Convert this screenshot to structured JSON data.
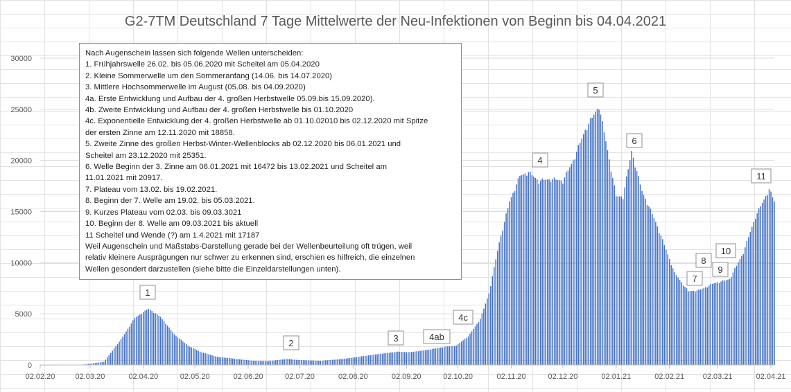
{
  "chart_data": {
    "type": "bar",
    "title": "G2-7TM Deutschland 7 Tage Mittelwerte der Neu-Infektionen von Beginn bis 04.04.2021",
    "xlabel": "",
    "ylabel": "",
    "ylim": [
      0,
      30000
    ],
    "yticks": [
      "0",
      "5000",
      "10000",
      "15000",
      "20000",
      "25000",
      "30000"
    ],
    "xticks": [
      "02.02.20",
      "02.03.20",
      "02.04.20",
      "02.05.20",
      "02.06.20",
      "02.07.20",
      "02.08.20",
      "02.09.20",
      "02.10.20",
      "02.11.20",
      "02.12.20",
      "02.01.21",
      "02.02.21",
      "02.03.21",
      "02.04.21"
    ],
    "x_start": "02.02.20",
    "x_end": "04.04.21",
    "grid": true,
    "bar_color": "#4472c4",
    "series_anchors": [
      [
        "02.02.20",
        0
      ],
      [
        "25.02.20",
        10
      ],
      [
        "10.03.20",
        300
      ],
      [
        "20.03.20",
        2500
      ],
      [
        "28.03.20",
        4600
      ],
      [
        "05.04.20",
        5500
      ],
      [
        "12.04.20",
        4700
      ],
      [
        "20.04.20",
        3000
      ],
      [
        "28.04.20",
        1900
      ],
      [
        "05.05.20",
        1300
      ],
      [
        "15.05.20",
        800
      ],
      [
        "26.05.20",
        600
      ],
      [
        "05.06.20",
        400
      ],
      [
        "14.06.20",
        380
      ],
      [
        "25.06.20",
        600
      ],
      [
        "01.07.20",
        480
      ],
      [
        "14.07.20",
        400
      ],
      [
        "24.07.20",
        550
      ],
      [
        "01.08.20",
        700
      ],
      [
        "18.08.20",
        1100
      ],
      [
        "28.08.20",
        1300
      ],
      [
        "04.09.20",
        1250
      ],
      [
        "15.09.20",
        1500
      ],
      [
        "25.09.20",
        1800
      ],
      [
        "01.10.20",
        1900
      ],
      [
        "08.10.20",
        2800
      ],
      [
        "15.10.20",
        4500
      ],
      [
        "20.10.20",
        7000
      ],
      [
        "26.10.20",
        12000
      ],
      [
        "01.11.20",
        16000
      ],
      [
        "07.11.20",
        18500
      ],
      [
        "12.11.20",
        18858
      ],
      [
        "18.11.20",
        18000
      ],
      [
        "25.11.20",
        18200
      ],
      [
        "02.12.20",
        18000
      ],
      [
        "08.12.20",
        20000
      ],
      [
        "15.12.20",
        23000
      ],
      [
        "23.12.20",
        25351
      ],
      [
        "28.12.20",
        21000
      ],
      [
        "02.01.21",
        16500
      ],
      [
        "06.01.21",
        16472
      ],
      [
        "11.01.21",
        20917
      ],
      [
        "17.01.21",
        17000
      ],
      [
        "25.01.21",
        14000
      ],
      [
        "05.02.21",
        9000
      ],
      [
        "13.02.21",
        7200
      ],
      [
        "19.02.21",
        7300
      ],
      [
        "28.02.21",
        8000
      ],
      [
        "05.03.21",
        8200
      ],
      [
        "09.03.21",
        8400
      ],
      [
        "17.03.21",
        11000
      ],
      [
        "24.03.21",
        14500
      ],
      [
        "01.04.21",
        17187
      ],
      [
        "04.04.21",
        16000
      ]
    ],
    "wave_labels": [
      "1",
      "2",
      "3",
      "4ab",
      "4c",
      "4",
      "5",
      "6",
      "7",
      "8",
      "9",
      "10",
      "11"
    ],
    "annotation_lines": [
      "Nach Augenschein lassen sich folgende Wellen unterscheiden:",
      "1. Frühjahrswelle  26.02. bis 05.06.2020 mit Scheitel am 05.04.2020",
      "2. Kleine Sommerwelle um den Sommeranfang (14.06. bis 14.07.2020)",
      "3. Mittlere Hochsommerwelle im August (05.08. bis 04.09.2020)",
      "4a. Erste Entwicklung und Aufbau der 4. großen Herbstwelle 05.09.bis 15.09.2020).",
      "4b. Zweite Entwicklung und Aufbau der 4. großen Herbstwelle bis 01.10.2020",
      "4c. Exponentielle Entwicklung der 4. großen Herbstwelle ab 01.10.02010 bis 02.12.2020 mit Spitze",
      "der ersten Zinne am 12.11.2020 mit 18858.",
      "5. Zweite Zinne des großen Herbst-Winter-Wellenblocks ab 02.12.2020 bis 06.01.2021 und",
      "Scheitel am 23.12.2020 mit 25351.",
      "6. Welle Beginn der 3. Zinne am 06.01.2021 mit 16472 bis 13.02.2021 und Scheitel am",
      "11.01.2021 mit 20917.",
      "7. Plateau vom 13.02. bis 19.02.2021.",
      "8. Beginn der 7. Welle am 19.02. bis 05.03.2021.",
      "9. Kurzes Plateau vom 02.03. bis 09.03.3021",
      "10. Beginn der 8. Welle am 09.03.2021 bis aktuell",
      "11  Scheitel  und Wende (?) am 1.4.2021 mit 17187",
      "Weil Augenschein und Maßstabs-Darstellung gerade bei der Wellenbeurteilung oft trügen, weil",
      "relativ kleinere Ausprägungen nur schwer zu erkennen sind, erschien es hilfreich, die einzelnen",
      "Wellen gesondert darzustellen (siehe bitte die Einzeldarstellungen unten)."
    ]
  }
}
